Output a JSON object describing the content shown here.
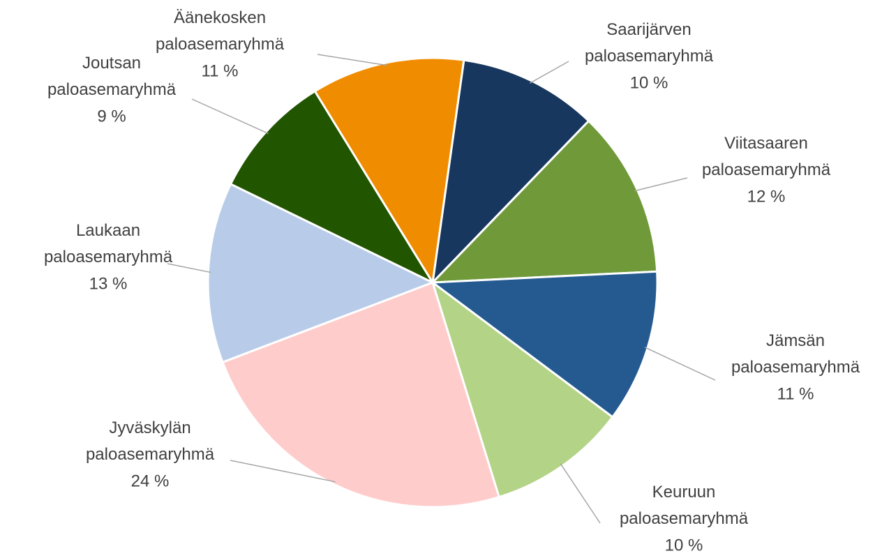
{
  "chart_data": {
    "type": "pie",
    "categories": [
      "Saarijärven paloasemaryhmä",
      "Viitasaaren paloasemaryhmä",
      "Jämsän paloasemaryhmä",
      "Keuruun paloasemaryhmä",
      "Jyväskylän paloasemaryhmä",
      "Laukaan paloasemaryhmä",
      "Joutsan paloasemaryhmä",
      "Äänekosken paloasemaryhmä"
    ],
    "values": [
      10,
      12,
      11,
      10,
      24,
      13,
      9,
      11
    ],
    "value_labels": [
      "10 %",
      "12 %",
      "11 %",
      "10 %",
      "24 %",
      "13 %",
      "9 %",
      "11 %"
    ],
    "colors": [
      "#17375e",
      "#70993a",
      "#255a91",
      "#b3d386",
      "#ffcccc",
      "#b8cce9",
      "#225500",
      "#f08c00"
    ]
  }
}
